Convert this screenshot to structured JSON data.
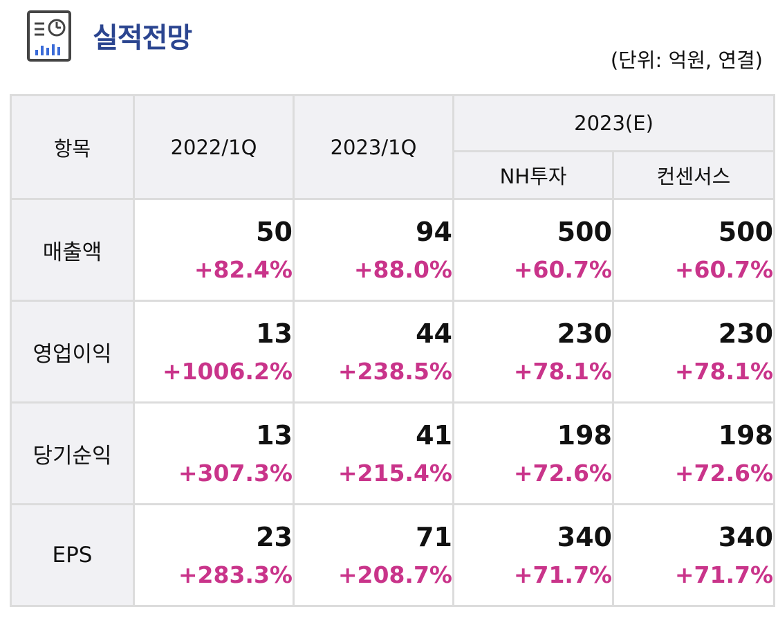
{
  "header": {
    "title": "실적전망",
    "icon": "report-chart-icon",
    "unit": "(단위: 억원, 연결)"
  },
  "table": {
    "columns": {
      "item": "항목",
      "col1": "2022/1Q",
      "col2": "2023/1Q",
      "group": "2023(E)",
      "col3": "NH투자",
      "col4": "컨센서스"
    },
    "rows": [
      {
        "label": "매출액",
        "values": [
          "50",
          "94",
          "500",
          "500"
        ],
        "changes": [
          "+82.4%",
          "+88.0%",
          "+60.7%",
          "+60.7%"
        ]
      },
      {
        "label": "영업이익",
        "values": [
          "13",
          "44",
          "230",
          "230"
        ],
        "changes": [
          "+1006.2%",
          "+238.5%",
          "+78.1%",
          "+78.1%"
        ]
      },
      {
        "label": "당기순익",
        "values": [
          "13",
          "41",
          "198",
          "198"
        ],
        "changes": [
          "+307.3%",
          "+215.4%",
          "+72.6%",
          "+72.6%"
        ]
      },
      {
        "label": "EPS",
        "values": [
          "23",
          "71",
          "340",
          "340"
        ],
        "changes": [
          "+283.3%",
          "+208.7%",
          "+71.7%",
          "+71.7%"
        ]
      }
    ]
  },
  "colors": {
    "title": "#2b4590",
    "change": "#c9348a",
    "header_bg": "#f1f1f4",
    "border": "#dcdcdc"
  }
}
